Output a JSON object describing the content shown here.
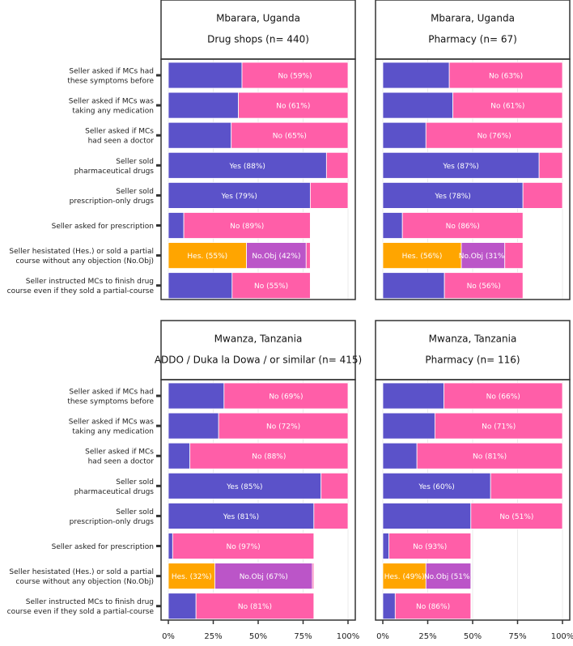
{
  "colors": {
    "yes": "#5b52c9",
    "no": "#ff5ea8",
    "hesitated": "#ffa500",
    "no_objection": "#bb55c8",
    "panel_border": "#333333",
    "strip_fill": "#ffffff",
    "grid": "#ebebeb",
    "bar_separator": "#ffffff"
  },
  "x_ticks": [
    "0%",
    "25%",
    "50%",
    "75%",
    "100%"
  ],
  "chart_data": [
    {
      "type": "bar",
      "orientation": "horizontal",
      "stacked": true,
      "title_line1": "Mbarara, Uganda",
      "title_line2": "Drug shops (n= 440)",
      "xlim": [
        0,
        100
      ],
      "categories": [
        [
          "Seller asked if MCs had",
          "these symptoms before"
        ],
        [
          "Seller asked if MCs was",
          "taking any medication"
        ],
        [
          "Seller asked if MCs",
          "had seen a doctor"
        ],
        [
          "Seller sold",
          "pharmaceutical drugs"
        ],
        [
          "Seller sold",
          "prescription-only drugs"
        ],
        [
          "Seller asked for prescription"
        ],
        [
          "Seller hesistated (Hes.) or sold a partial",
          "course without any objection (No.Obj)"
        ],
        [
          "Seller instructed MCs to finish drug",
          "course even if they sold a partial-course"
        ]
      ],
      "rows": [
        {
          "segments": [
            {
              "kind": "yes",
              "value": 41,
              "label": ""
            },
            {
              "kind": "no",
              "value": 59,
              "label": "No (59%)"
            }
          ]
        },
        {
          "segments": [
            {
              "kind": "yes",
              "value": 39,
              "label": ""
            },
            {
              "kind": "no",
              "value": 61,
              "label": "No (61%)"
            }
          ]
        },
        {
          "segments": [
            {
              "kind": "yes",
              "value": 35,
              "label": ""
            },
            {
              "kind": "no",
              "value": 65,
              "label": "No (65%)"
            }
          ]
        },
        {
          "segments": [
            {
              "kind": "yes",
              "value": 88,
              "label": "Yes (88%)"
            },
            {
              "kind": "no",
              "value": 12,
              "label": ""
            }
          ]
        },
        {
          "segments": [
            {
              "kind": "yes",
              "value": 79,
              "label": "Yes (79%)"
            },
            {
              "kind": "no",
              "value": 21,
              "label": ""
            }
          ]
        },
        {
          "segments": [
            {
              "kind": "yes",
              "value": 8.6,
              "label": ""
            },
            {
              "kind": "no",
              "value": 70.4,
              "label": "No (89%)"
            }
          ]
        },
        {
          "segments": [
            {
              "kind": "hesitated",
              "value": 43.5,
              "label": "Hes. (55%)"
            },
            {
              "kind": "no_objection",
              "value": 33.2,
              "label": "No.Obj (42%)"
            },
            {
              "kind": "no",
              "value": 2.3,
              "label": ""
            }
          ]
        },
        {
          "segments": [
            {
              "kind": "yes",
              "value": 35.5,
              "label": ""
            },
            {
              "kind": "no",
              "value": 43.5,
              "label": "No (55%)"
            }
          ]
        }
      ]
    },
    {
      "type": "bar",
      "orientation": "horizontal",
      "stacked": true,
      "title_line1": "Mbarara, Uganda",
      "title_line2": "Pharmacy (n= 67)",
      "xlim": [
        0,
        100
      ],
      "categories": [
        [
          "Seller asked if MCs had",
          "these symptoms before"
        ],
        [
          "Seller asked if MCs was",
          "taking any medication"
        ],
        [
          "Seller asked if MCs",
          "had seen a doctor"
        ],
        [
          "Seller sold",
          "pharmaceutical drugs"
        ],
        [
          "Seller sold",
          "prescription-only drugs"
        ],
        [
          "Seller asked for prescription"
        ],
        [
          "Seller hesistated (Hes.) or sold a partial",
          "course without any objection (No.Obj)"
        ],
        [
          "Seller instructed MCs to finish drug",
          "course even if they sold a partial-course"
        ]
      ],
      "rows": [
        {
          "segments": [
            {
              "kind": "yes",
              "value": 37,
              "label": ""
            },
            {
              "kind": "no",
              "value": 63,
              "label": "No (63%)"
            }
          ]
        },
        {
          "segments": [
            {
              "kind": "yes",
              "value": 39,
              "label": ""
            },
            {
              "kind": "no",
              "value": 61,
              "label": "No (61%)"
            }
          ]
        },
        {
          "segments": [
            {
              "kind": "yes",
              "value": 24,
              "label": ""
            },
            {
              "kind": "no",
              "value": 76,
              "label": "No (76%)"
            }
          ]
        },
        {
          "segments": [
            {
              "kind": "yes",
              "value": 87,
              "label": "Yes (87%)"
            },
            {
              "kind": "no",
              "value": 13,
              "label": ""
            }
          ]
        },
        {
          "segments": [
            {
              "kind": "yes",
              "value": 78,
              "label": "Yes (78%)"
            },
            {
              "kind": "no",
              "value": 22,
              "label": ""
            }
          ]
        },
        {
          "segments": [
            {
              "kind": "yes",
              "value": 10.9,
              "label": ""
            },
            {
              "kind": "no",
              "value": 67.1,
              "label": "No (86%)"
            }
          ]
        },
        {
          "segments": [
            {
              "kind": "hesitated",
              "value": 43.7,
              "label": "Hes. (56%)"
            },
            {
              "kind": "no_objection",
              "value": 24.2,
              "label": "No.Obj (31%)"
            },
            {
              "kind": "no",
              "value": 10.1,
              "label": ""
            }
          ]
        },
        {
          "segments": [
            {
              "kind": "yes",
              "value": 34.3,
              "label": ""
            },
            {
              "kind": "no",
              "value": 43.7,
              "label": "No (56%)"
            }
          ]
        }
      ]
    },
    {
      "type": "bar",
      "orientation": "horizontal",
      "stacked": true,
      "title_line1": "Mwanza, Tanzania",
      "title_line2": "ADDO / Duka la Dowa / or similar  (n= 415)",
      "xlim": [
        0,
        100
      ],
      "categories": [
        [
          "Seller asked if MCs had",
          "these symptoms before"
        ],
        [
          "Seller asked if MCs was",
          "taking any medication"
        ],
        [
          "Seller asked if MCs",
          "had seen a doctor"
        ],
        [
          "Seller sold",
          "pharmaceutical drugs"
        ],
        [
          "Seller sold",
          "prescription-only drugs"
        ],
        [
          "Seller asked for prescription"
        ],
        [
          "Seller hesistated (Hes.) or sold a partial",
          "course without any objection (No.Obj)"
        ],
        [
          "Seller instructed MCs to finish drug",
          "course even if they sold a partial-course"
        ]
      ],
      "rows": [
        {
          "segments": [
            {
              "kind": "yes",
              "value": 31,
              "label": ""
            },
            {
              "kind": "no",
              "value": 69,
              "label": "No (69%)"
            }
          ]
        },
        {
          "segments": [
            {
              "kind": "yes",
              "value": 28,
              "label": ""
            },
            {
              "kind": "no",
              "value": 72,
              "label": "No (72%)"
            }
          ]
        },
        {
          "segments": [
            {
              "kind": "yes",
              "value": 12,
              "label": ""
            },
            {
              "kind": "no",
              "value": 88,
              "label": "No (88%)"
            }
          ]
        },
        {
          "segments": [
            {
              "kind": "yes",
              "value": 85,
              "label": "Yes (85%)"
            },
            {
              "kind": "no",
              "value": 15,
              "label": ""
            }
          ]
        },
        {
          "segments": [
            {
              "kind": "yes",
              "value": 81,
              "label": "Yes (81%)"
            },
            {
              "kind": "no",
              "value": 19,
              "label": ""
            }
          ]
        },
        {
          "segments": [
            {
              "kind": "yes",
              "value": 2.4,
              "label": ""
            },
            {
              "kind": "no",
              "value": 78.6,
              "label": "No (97%)"
            }
          ]
        },
        {
          "segments": [
            {
              "kind": "hesitated",
              "value": 25.9,
              "label": "Hes. (32%)"
            },
            {
              "kind": "no_objection",
              "value": 54.3,
              "label": "No.Obj (67%)"
            },
            {
              "kind": "no",
              "value": 0.8,
              "label": ""
            }
          ]
        },
        {
          "segments": [
            {
              "kind": "yes",
              "value": 15.4,
              "label": ""
            },
            {
              "kind": "no",
              "value": 65.6,
              "label": "No (81%)"
            }
          ]
        }
      ]
    },
    {
      "type": "bar",
      "orientation": "horizontal",
      "stacked": true,
      "title_line1": "Mwanza, Tanzania",
      "title_line2": "Pharmacy (n= 116)",
      "xlim": [
        0,
        100
      ],
      "categories": [
        [
          "Seller asked if MCs had",
          "these symptoms before"
        ],
        [
          "Seller asked if MCs was",
          "taking any medication"
        ],
        [
          "Seller asked if MCs",
          "had seen a doctor"
        ],
        [
          "Seller sold",
          "pharmaceutical drugs"
        ],
        [
          "Seller sold",
          "prescription-only drugs"
        ],
        [
          "Seller asked for prescription"
        ],
        [
          "Seller hesistated (Hes.) or sold a partial",
          "course without any objection (No.Obj)"
        ],
        [
          "Seller instructed MCs to finish drug",
          "course even if they sold a partial-course"
        ]
      ],
      "rows": [
        {
          "segments": [
            {
              "kind": "yes",
              "value": 34,
              "label": ""
            },
            {
              "kind": "no",
              "value": 66,
              "label": "No (66%)"
            }
          ]
        },
        {
          "segments": [
            {
              "kind": "yes",
              "value": 29,
              "label": ""
            },
            {
              "kind": "no",
              "value": 71,
              "label": "No (71%)"
            }
          ]
        },
        {
          "segments": [
            {
              "kind": "yes",
              "value": 19,
              "label": ""
            },
            {
              "kind": "no",
              "value": 81,
              "label": "No (81%)"
            }
          ]
        },
        {
          "segments": [
            {
              "kind": "yes",
              "value": 60,
              "label": "Yes (60%)"
            },
            {
              "kind": "no",
              "value": 40,
              "label": ""
            }
          ]
        },
        {
          "segments": [
            {
              "kind": "yes",
              "value": 49,
              "label": ""
            },
            {
              "kind": "no",
              "value": 51,
              "label": "No (51%)"
            }
          ]
        },
        {
          "segments": [
            {
              "kind": "yes",
              "value": 3.4,
              "label": ""
            },
            {
              "kind": "no",
              "value": 45.6,
              "label": "No (93%)"
            }
          ]
        },
        {
          "segments": [
            {
              "kind": "hesitated",
              "value": 24,
              "label": "Hes. (49%)"
            },
            {
              "kind": "no_objection",
              "value": 25,
              "label": "No.Obj (51%)"
            }
          ]
        },
        {
          "segments": [
            {
              "kind": "yes",
              "value": 6.9,
              "label": ""
            },
            {
              "kind": "no",
              "value": 42.1,
              "label": "No (86%)"
            }
          ]
        }
      ]
    }
  ]
}
